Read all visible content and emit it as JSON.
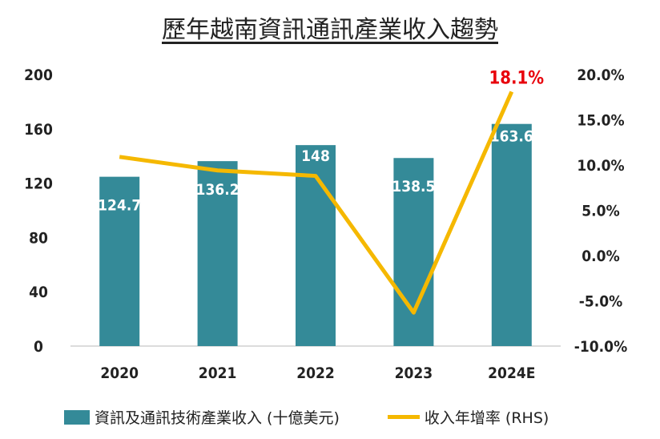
{
  "chart_data": {
    "type": "bar+line",
    "title": "歷年越南資訊通訊產業收入趨勢",
    "categories": [
      "2020",
      "2021",
      "2022",
      "2023",
      "2024E"
    ],
    "series": [
      {
        "name": "資訊及通訊技術產業收入 (十億美元)",
        "type": "bar",
        "axis": "left",
        "color": "#348a98",
        "values": [
          124.7,
          136.2,
          148,
          138.5,
          163.6
        ],
        "labels": [
          "124.7",
          "136.2",
          "148",
          "138.5",
          "163.6"
        ]
      },
      {
        "name": "收入年增率 (RHS)",
        "type": "line",
        "axis": "right",
        "color": "#f5b800",
        "values": [
          10.9,
          9.4,
          8.8,
          -6.3,
          18.1
        ],
        "labels": [
          "",
          "",
          "",
          "",
          "18.1%"
        ]
      }
    ],
    "left_axis": {
      "ylim": [
        0,
        200
      ],
      "ticks": [
        "0",
        "40",
        "80",
        "120",
        "160",
        "200"
      ]
    },
    "right_axis": {
      "ylim": [
        -10,
        20
      ],
      "ticks": [
        "-10.0%",
        "-5.0%",
        "0.0%",
        "5.0%",
        "10.0%",
        "15.0%",
        "20.0%"
      ]
    },
    "highlight_color": "#e8000b",
    "legend_position": "bottom",
    "grid": false
  }
}
